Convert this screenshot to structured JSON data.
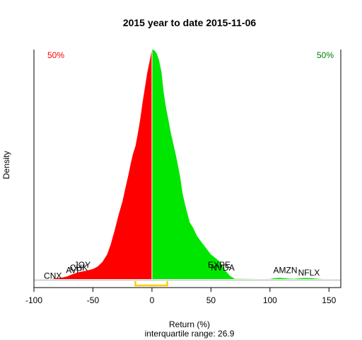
{
  "chart_data": {
    "type": "area",
    "title": "2015  year to date 2015-11-06",
    "xlabel": "Return (%)",
    "ylabel": "Density",
    "subtitle": "interquartile range: 26.9",
    "xlim": [
      -100,
      160
    ],
    "xticks": [
      -100,
      -50,
      0,
      50,
      100,
      150
    ],
    "left_share": "50%",
    "right_share": "50%",
    "iqr": [
      -14,
      13
    ],
    "colors": {
      "negative": "#ff0000",
      "positive": "#00e600",
      "iqr": "#ffcc00",
      "left_share": "#ff0000",
      "right_share": "#008000"
    },
    "density": {
      "x": [
        -84,
        -80,
        -75,
        -72,
        -68,
        -64,
        -60,
        -55,
        -50,
        -46,
        -42,
        -38,
        -35,
        -32,
        -28,
        -25,
        -22,
        -20,
        -18,
        -16,
        -14,
        -12,
        -10,
        -8,
        -6,
        -4,
        -2,
        0,
        2,
        4,
        6,
        8,
        10,
        12,
        14,
        16,
        18,
        20,
        22,
        24,
        26,
        28,
        30,
        32,
        35,
        38,
        42,
        46,
        50,
        54,
        58,
        62,
        66,
        70,
        90,
        100,
        104,
        108,
        112,
        116,
        120,
        124,
        128,
        132,
        136,
        140,
        145
      ],
      "y": [
        0.2,
        1.2,
        2.5,
        3.8,
        6.4,
        8.8,
        10.5,
        12.0,
        14.3,
        17.7,
        24.1,
        34.8,
        48.6,
        66.4,
        92.4,
        109.5,
        132.3,
        146.7,
        163.1,
        177.1,
        187.6,
        205.1,
        224.7,
        249.0,
        270.0,
        291.0,
        307.4,
        324.3,
        323.1,
        318.5,
        309.1,
        292.8,
        263.0,
        240.8,
        224.4,
        206.4,
        191.5,
        177.1,
        160.7,
        143.2,
        120.6,
        105.5,
        92.9,
        80.1,
        72.3,
        61.3,
        52.1,
        43.4,
        34.6,
        29.5,
        23.8,
        12.4,
        4.8,
        0.4,
        0.0,
        0.1,
        1.3,
        1.8,
        1.3,
        0.6,
        0.4,
        0.9,
        1.5,
        1.5,
        1.1,
        0.5,
        0.0
      ]
    },
    "annotations": [
      {
        "text": "CNX",
        "x": -84,
        "y": 0.7
      },
      {
        "text": "AVP",
        "x": -66,
        "y": 8.5
      },
      {
        "text": "CHK",
        "x": -62,
        "y": 12.2
      },
      {
        "text": "JOY",
        "x": -59,
        "y": 16.0
      },
      {
        "text": "EXPE",
        "x": 57,
        "y": 16.0
      },
      {
        "text": "NVDA",
        "x": 60,
        "y": 12.2
      },
      {
        "text": "AMZN",
        "x": 113,
        "y": 8.5
      },
      {
        "text": "NFLX",
        "x": 133,
        "y": 4.8
      }
    ]
  }
}
